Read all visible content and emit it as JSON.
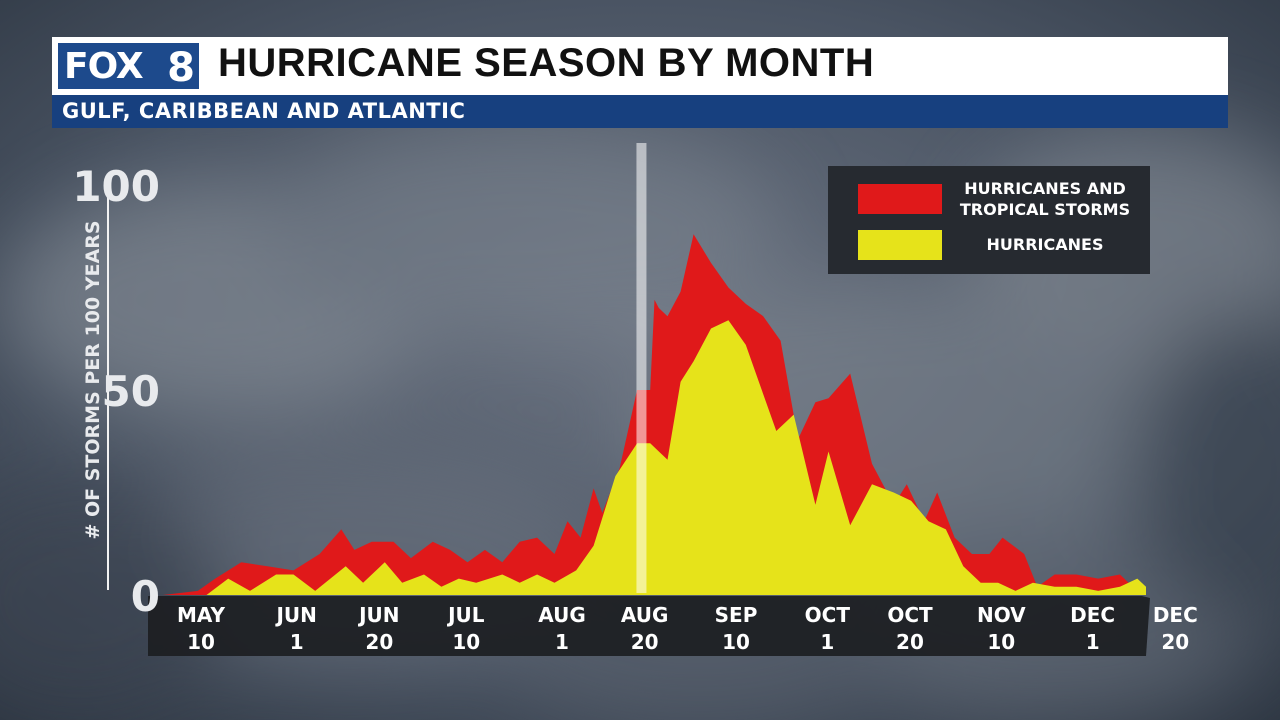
{
  "header": {
    "logo_text": "FOX",
    "logo_number": "8",
    "title": "HURRICANE SEASON BY MONTH",
    "subtitle": "GULF, CARIBBEAN AND ATLANTIC"
  },
  "colors": {
    "red": "#e0191a",
    "yellow": "#e6e31a",
    "title_bar": "#ffffff",
    "subtitle_bar": "#17407f",
    "logo_blue": "#1d4a8c"
  },
  "chart_data": {
    "type": "area",
    "title": "HURRICANE SEASON BY MONTH",
    "subtitle": "GULF, CARIBBEAN AND ATLANTIC",
    "ylabel": "# OF STORMS PER 100 YEARS",
    "xlabel": "",
    "ylim": [
      0,
      100
    ],
    "y_ticks": [
      "0",
      "50",
      "100"
    ],
    "x_range_days": [
      0,
      226
    ],
    "x_tick_days": [
      0,
      22,
      41,
      61,
      83,
      102,
      123,
      144,
      163,
      184,
      205,
      224
    ],
    "x_tick_labels": [
      [
        "MAY",
        "10"
      ],
      [
        "JUN",
        "1"
      ],
      [
        "JUN",
        "20"
      ],
      [
        "JUL",
        "10"
      ],
      [
        "AUG",
        "1"
      ],
      [
        "AUG",
        "20"
      ],
      [
        "SEP",
        "10"
      ],
      [
        "OCT",
        "1"
      ],
      [
        "OCT",
        "20"
      ],
      [
        "NOV",
        "10"
      ],
      [
        "DEC",
        "1"
      ],
      [
        "DEC",
        "20"
      ]
    ],
    "peak_marker_day": 110,
    "series": [
      {
        "name": "HURRICANES AND TROPICAL STORMS",
        "color": "#e0191a",
        "points": [
          [
            0,
            0
          ],
          [
            8,
            1
          ],
          [
            12,
            4
          ],
          [
            18,
            8
          ],
          [
            24,
            7
          ],
          [
            30,
            6
          ],
          [
            36,
            10
          ],
          [
            41,
            16
          ],
          [
            44,
            11
          ],
          [
            48,
            13
          ],
          [
            53,
            13
          ],
          [
            57,
            9
          ],
          [
            62,
            13
          ],
          [
            66,
            11
          ],
          [
            70,
            8
          ],
          [
            74,
            11
          ],
          [
            78,
            8
          ],
          [
            82,
            13
          ],
          [
            86,
            14
          ],
          [
            90,
            10
          ],
          [
            93,
            18
          ],
          [
            96,
            14
          ],
          [
            99,
            26
          ],
          [
            101,
            20
          ],
          [
            105,
            31
          ],
          [
            109,
            50
          ],
          [
            112,
            50
          ],
          [
            113,
            72
          ],
          [
            114,
            70
          ],
          [
            116,
            68
          ],
          [
            119,
            74
          ],
          [
            122,
            88
          ],
          [
            126,
            81
          ],
          [
            130,
            75
          ],
          [
            134,
            71
          ],
          [
            138,
            68
          ],
          [
            142,
            62
          ],
          [
            146,
            38
          ],
          [
            150,
            47
          ],
          [
            153,
            48
          ],
          [
            158,
            54
          ],
          [
            163,
            32
          ],
          [
            168,
            22
          ],
          [
            171,
            27
          ],
          [
            175,
            18
          ],
          [
            178,
            25
          ],
          [
            182,
            14
          ],
          [
            186,
            10
          ],
          [
            190,
            10
          ],
          [
            193,
            14
          ],
          [
            198,
            10
          ],
          [
            201,
            2
          ],
          [
            205,
            5
          ],
          [
            210,
            5
          ],
          [
            215,
            4
          ],
          [
            220,
            5
          ],
          [
            224,
            1
          ],
          [
            226,
            0
          ]
        ]
      },
      {
        "name": "HURRICANES",
        "color": "#e6e31a",
        "points": [
          [
            0,
            0
          ],
          [
            10,
            0
          ],
          [
            15,
            4
          ],
          [
            20,
            1
          ],
          [
            26,
            5
          ],
          [
            30,
            5
          ],
          [
            35,
            1
          ],
          [
            42,
            7
          ],
          [
            46,
            3
          ],
          [
            51,
            8
          ],
          [
            55,
            3
          ],
          [
            60,
            5
          ],
          [
            64,
            2
          ],
          [
            68,
            4
          ],
          [
            72,
            3
          ],
          [
            78,
            5
          ],
          [
            82,
            3
          ],
          [
            86,
            5
          ],
          [
            90,
            3
          ],
          [
            95,
            6
          ],
          [
            99,
            12
          ],
          [
            104,
            29
          ],
          [
            109,
            37
          ],
          [
            112,
            37
          ],
          [
            116,
            33
          ],
          [
            119,
            52
          ],
          [
            122,
            57
          ],
          [
            126,
            65
          ],
          [
            130,
            67
          ],
          [
            134,
            61
          ],
          [
            138,
            49
          ],
          [
            141,
            40
          ],
          [
            145,
            44
          ],
          [
            150,
            22
          ],
          [
            153,
            35
          ],
          [
            158,
            17
          ],
          [
            163,
            27
          ],
          [
            168,
            25
          ],
          [
            172,
            23
          ],
          [
            176,
            18
          ],
          [
            180,
            16
          ],
          [
            184,
            7
          ],
          [
            188,
            3
          ],
          [
            192,
            3
          ],
          [
            196,
            1
          ],
          [
            200,
            3
          ],
          [
            205,
            2
          ],
          [
            210,
            2
          ],
          [
            215,
            1
          ],
          [
            220,
            2
          ],
          [
            224,
            4
          ],
          [
            226,
            2
          ]
        ]
      }
    ]
  }
}
